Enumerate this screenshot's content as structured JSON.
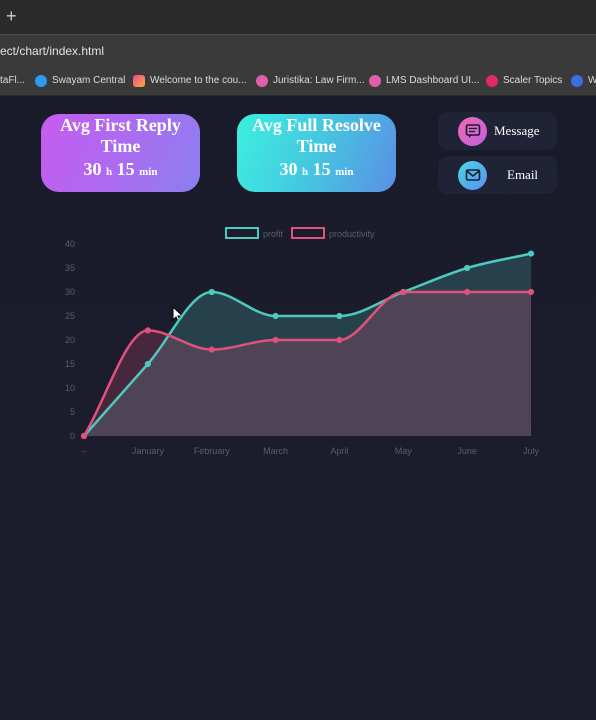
{
  "browser": {
    "new_tab_glyph": "+",
    "url": "ect/chart/index.html",
    "bookmarks": [
      {
        "label": "taFl...",
        "icon": "none"
      },
      {
        "label": "Swayam Central",
        "icon": "swayam-icon",
        "color": "#2b9cf0"
      },
      {
        "label": "Welcome to the cou...",
        "icon": "course-icon",
        "color": "#f0488a"
      },
      {
        "label": "Juristika: Law Firm...",
        "icon": "dribbble-icon",
        "color": "#e05fa6"
      },
      {
        "label": "LMS Dashboard UI...",
        "icon": "dribbble-icon",
        "color": "#e05fa6"
      },
      {
        "label": "Scaler Topics",
        "icon": "scaler-icon",
        "color": "#e02a6a"
      },
      {
        "label": "W",
        "icon": "c-icon",
        "color": "#3b6fe0"
      }
    ]
  },
  "stats": {
    "first_reply": {
      "title": "Avg First Reply Time",
      "hours": "30",
      "h_unit": "h",
      "minutes": "15",
      "m_unit": "min"
    },
    "full_resolve": {
      "title": "Avg Full Resolve Time",
      "hours": "30",
      "h_unit": "h",
      "minutes": "15",
      "m_unit": "min"
    }
  },
  "actions": {
    "message_label": "Message",
    "email_label": "Email"
  },
  "chart_data": {
    "type": "area",
    "categories": [
      "–",
      "January",
      "February",
      "March",
      "April",
      "May",
      "June",
      "July"
    ],
    "ylim": [
      0,
      40
    ],
    "yticks": [
      0,
      5,
      10,
      15,
      20,
      25,
      30,
      35,
      40
    ],
    "legend_position": "top",
    "grid": false,
    "series": [
      {
        "name": "profit",
        "color": "#4ec9c0",
        "values": [
          0,
          15,
          30,
          25,
          25,
          30,
          35,
          38
        ]
      },
      {
        "name": "productivity",
        "color": "#e0527c",
        "values": [
          0,
          22,
          18,
          20,
          20,
          30,
          30,
          30
        ]
      }
    ]
  }
}
